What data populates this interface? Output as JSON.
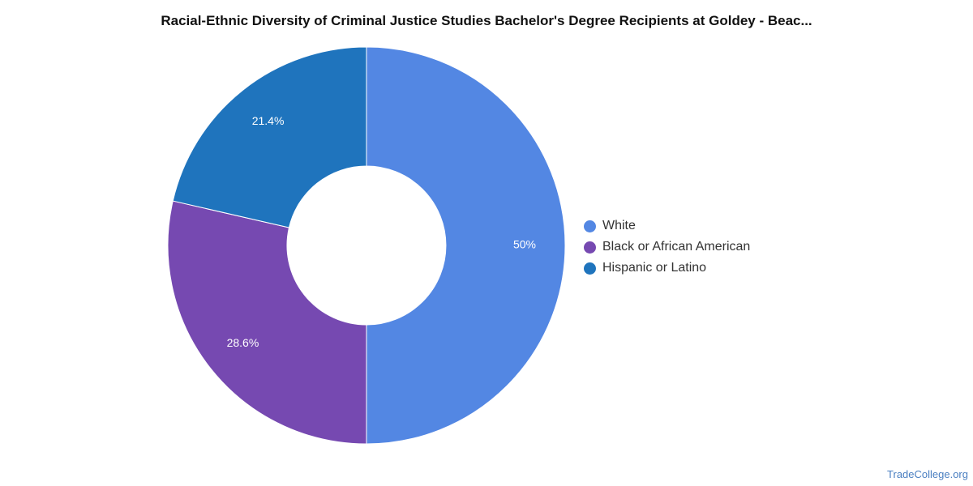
{
  "chart_data": {
    "type": "pie",
    "variant": "donut",
    "title": "Racial-Ethnic Diversity of Criminal Justice Studies Bachelor's Degree Recipients at Goldey - Beac...",
    "categories": [
      "White",
      "Black or African American",
      "Hispanic or Latino"
    ],
    "values": [
      50,
      28.6,
      21.4
    ],
    "labels": [
      "50%",
      "28.6%",
      "21.4%"
    ],
    "colors": [
      "#5387e3",
      "#7649b1",
      "#1f74bd"
    ],
    "legend_position": "right"
  },
  "watermark": "TradeCollege.org"
}
